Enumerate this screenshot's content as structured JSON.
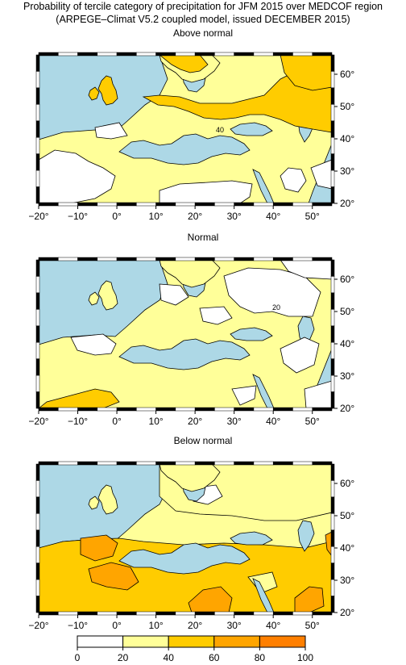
{
  "figure": {
    "title_line1": "Probability of tercile category of precipitation for JFM 2015 over MEDCOF region",
    "title_line2": "(ARPEGE–Climat V5.2 coupled model, issued DECEMBER 2015)"
  },
  "panels": [
    {
      "title": "Above normal",
      "contour_label": "40"
    },
    {
      "title": "Normal",
      "contour_label": "20"
    },
    {
      "title": "Below normal",
      "contour_label": ""
    }
  ],
  "axes": {
    "lon_ticks": [
      "−20°",
      "−10°",
      "0°",
      "10°",
      "20°",
      "30°",
      "40°",
      "50°"
    ],
    "lat_ticks": [
      "20°",
      "30°",
      "40°",
      "50°",
      "60°"
    ]
  },
  "colorbar": {
    "labels": [
      "0",
      "20",
      "40",
      "60",
      "80",
      "100"
    ],
    "colors": [
      "#ffffff",
      "#ffff99",
      "#ffcc00",
      "#ffa500",
      "#ff7f00",
      "#ff5500"
    ]
  },
  "map_colors": {
    "sea": "#add8e6",
    "land_low": "#ffffff",
    "land_20_40": "#ffff99",
    "land_40_60": "#ffcc00",
    "land_60_80": "#ffa500"
  }
}
